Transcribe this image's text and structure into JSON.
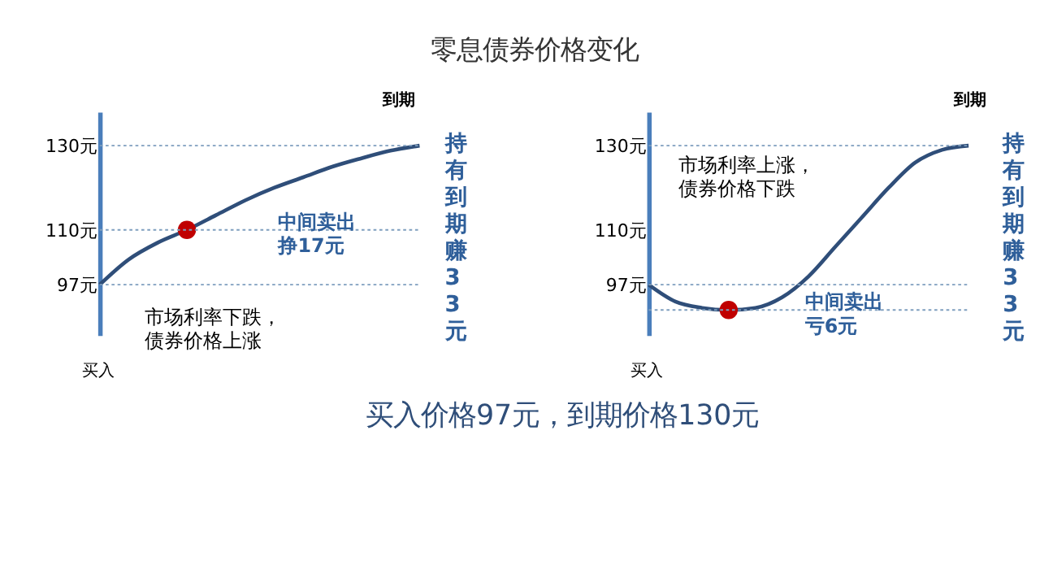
{
  "chart_data": [
    {
      "type": "line",
      "title": "零息债券价格变化",
      "categories": [
        null,
        null,
        null,
        null,
        null,
        null,
        null,
        null,
        null,
        null,
        null,
        null
      ],
      "series": [
        {
          "color": "#2f4e79",
          "line_style": "solid",
          "values": [
            97,
            103,
            107,
            110,
            113.5,
            117,
            120,
            122.5,
            125,
            127,
            128.8,
            130
          ]
        },
        {
          "type": "scatter",
          "color": "#c00000",
          "marker": "circle",
          "values": [
            null,
            null,
            null,
            110,
            null,
            null,
            null,
            null,
            null,
            null,
            null,
            null
          ]
        }
      ],
      "ylim": [
        85,
        138
      ],
      "yticks": [
        {
          "value": 97,
          "label": "97元"
        },
        {
          "value": 110,
          "label": "110元"
        },
        {
          "value": 130,
          "label": "130元"
        }
      ],
      "grid": false,
      "ref_lines": [
        {
          "axis": "y",
          "value": 97,
          "line_style": "dotted",
          "color": "#7f9fbf"
        },
        {
          "axis": "y",
          "value": 110,
          "line_style": "dotted",
          "color": "#7f9fbf"
        },
        {
          "axis": "y",
          "value": 130,
          "line_style": "dotted",
          "color": "#7f9fbf"
        }
      ],
      "annotations": [
        "到期",
        "持有到期赚33元",
        "中间卖出挣17元",
        "市场利率下跌，债券价格上涨",
        "买入"
      ]
    },
    {
      "type": "line",
      "categories": [
        null,
        null,
        null,
        null,
        null,
        null,
        null,
        null,
        null,
        null,
        null,
        null,
        null
      ],
      "series": [
        {
          "color": "#2f4e79",
          "line_style": "solid",
          "values": [
            97,
            93,
            91.5,
            91,
            91.5,
            94,
            99,
            106,
            113,
            120,
            126,
            129,
            130
          ]
        },
        {
          "type": "scatter",
          "color": "#c00000",
          "marker": "circle",
          "values": [
            null,
            null,
            null,
            91,
            null,
            null,
            null,
            null,
            null,
            null,
            null,
            null,
            null
          ]
        }
      ],
      "ylim": [
        85,
        138
      ],
      "yticks": [
        {
          "value": 97,
          "label": "97元"
        },
        {
          "value": 110,
          "label": "110元"
        },
        {
          "value": 130,
          "label": "130元"
        }
      ],
      "grid": false,
      "ref_lines": [
        {
          "axis": "y",
          "value": 91,
          "line_style": "dotted",
          "color": "#7f9fbf"
        },
        {
          "axis": "y",
          "value": 97,
          "line_style": "dotted",
          "color": "#7f9fbf"
        },
        {
          "axis": "y",
          "value": 130,
          "line_style": "dotted",
          "color": "#7f9fbf"
        }
      ],
      "annotations": [
        "到期",
        "持有到期赚33元",
        "市场利率上涨，债券价格下跌",
        "中间卖出亏6元",
        "买入",
        "买入价格97元，到期价格130元"
      ]
    }
  ]
}
